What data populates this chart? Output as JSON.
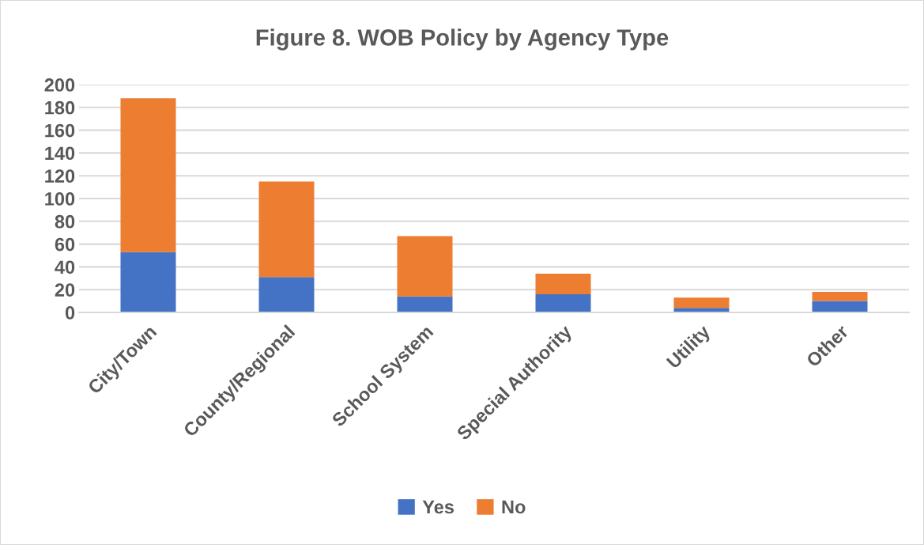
{
  "chart_data": {
    "type": "bar",
    "title": "Figure 8. WOB Policy by Agency Type",
    "categories": [
      "City/Town",
      "County/Regional",
      "School System",
      "Special Authority",
      "Utility",
      "Other"
    ],
    "stacked": true,
    "series": [
      {
        "name": "Yes",
        "color": "#4472c4",
        "values": [
          53,
          31,
          14,
          16,
          4,
          10
        ]
      },
      {
        "name": "No",
        "color": "#ed7d31",
        "values": [
          135,
          84,
          53,
          18,
          9,
          8
        ]
      }
    ],
    "ylim": [
      0,
      200
    ],
    "yticks": [
      0,
      20,
      40,
      60,
      80,
      100,
      120,
      140,
      160,
      180,
      200
    ],
    "grid": "y",
    "legend": "bottom"
  }
}
